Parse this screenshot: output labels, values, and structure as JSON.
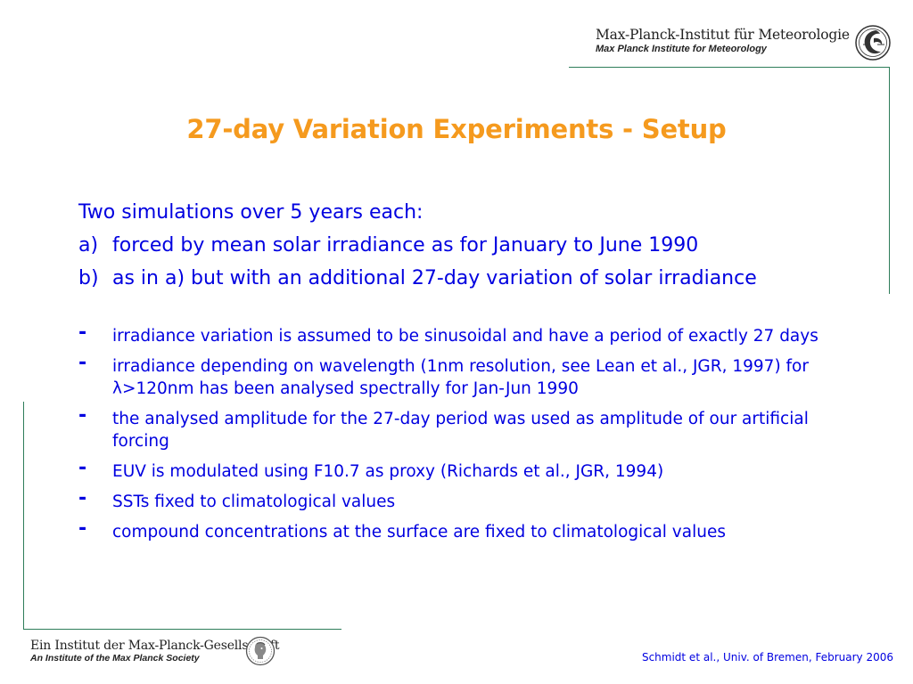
{
  "header": {
    "institute_de": "Max-Planck-Institut für Meteorologie",
    "institute_en": "Max Planck Institute for Meteorology",
    "logo_icon": "mpi-meteorology-logo-icon"
  },
  "title": "27-day Variation Experiments - Setup",
  "intro": {
    "lead": "Two simulations over 5 years each:",
    "items": [
      {
        "marker": "a)",
        "text": "forced by mean solar irradiance as for January to June 1990"
      },
      {
        "marker": "b)",
        "text": "as in a) but with an additional 27-day variation of solar irradiance"
      }
    ]
  },
  "bullets": {
    "marker": "-",
    "items": [
      "irradiance variation is assumed to be sinusoidal and have a period of exactly 27 days",
      "irradiance depending on wavelength (1nm resolution, see Lean et al., JGR, 1997) for λ>120nm has been analysed spectrally for Jan-Jun 1990",
      "the analysed amplitude for the 27-day period was used as amplitude of our artificial forcing",
      "EUV is modulated using F10.7 as proxy (Richards et al., JGR, 1994)",
      "SSTs fixed to climatological values",
      "compound concentrations at the surface are fixed to climatological values"
    ]
  },
  "footer": {
    "society_de": "Ein Institut der Max-Planck-Gesellschaft",
    "society_en": "An Institute of the Max Planck Society",
    "logo_icon": "minerva-logo-icon",
    "credit": "Schmidt et al., Univ. of Bremen, February 2006"
  },
  "colors": {
    "title": "#f59a1e",
    "body_text": "#0000e0",
    "frame": "#2e7d5a"
  }
}
